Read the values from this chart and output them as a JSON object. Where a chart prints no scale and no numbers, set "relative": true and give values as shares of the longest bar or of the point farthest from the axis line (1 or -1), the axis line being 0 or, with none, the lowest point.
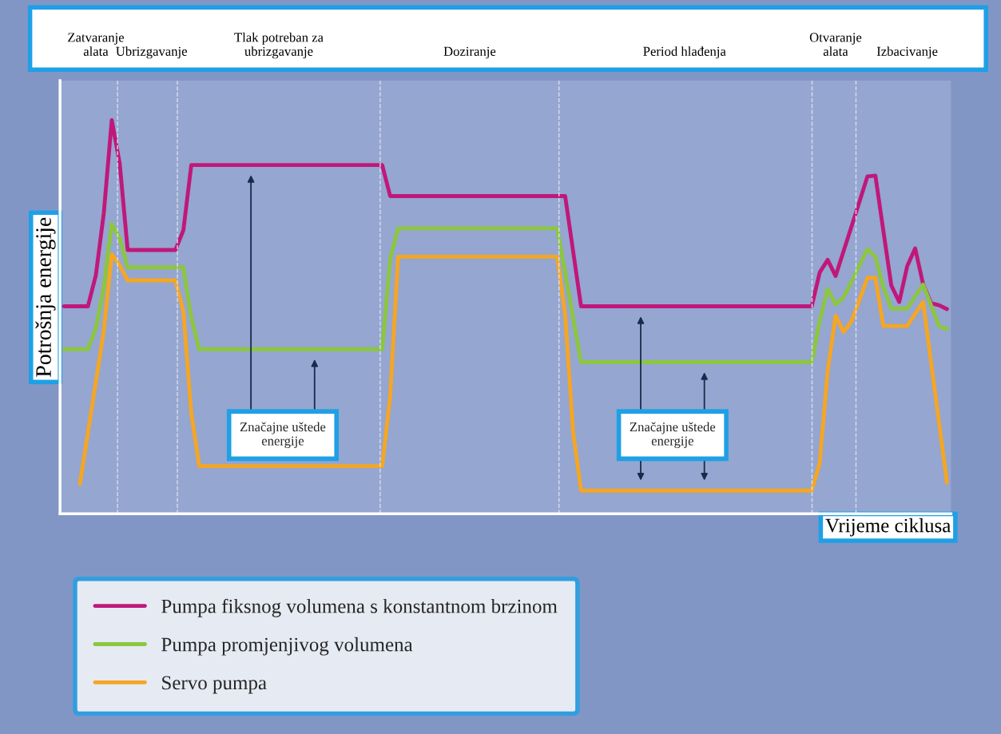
{
  "chart_data": {
    "type": "line",
    "relative": true,
    "ylabel": "Potrošnja energije",
    "xlabel": "Vrijeme ciklusa",
    "legend": "bottom",
    "marker": "none",
    "line_style": "solid",
    "categories": [
      null,
      null,
      null,
      null,
      "Zatvaranje\nalata",
      null,
      null,
      null,
      null,
      null,
      null,
      "Ubrizgavanje",
      null,
      null,
      null,
      null,
      null,
      null,
      null,
      null,
      null,
      null,
      null,
      null,
      null,
      null,
      null,
      "Tlak potreban za\nubrizgavanje",
      null,
      null,
      null,
      null,
      null,
      null,
      null,
      null,
      null,
      null,
      null,
      null,
      null,
      null,
      null,
      null,
      null,
      null,
      null,
      null,
      null,
      null,
      null,
      "Doziranje",
      null,
      null,
      null,
      null,
      null,
      null,
      null,
      null,
      null,
      null,
      null,
      null,
      null,
      null,
      null,
      null,
      null,
      null,
      null,
      null,
      null,
      null,
      null,
      null,
      null,
      null,
      "Period hlađenja",
      null,
      null,
      null,
      null,
      null,
      null,
      null,
      null,
      null,
      null,
      null,
      null,
      null,
      null,
      null,
      null,
      null,
      null,
      "Otvaranje\nalata",
      null,
      null,
      null,
      null,
      null,
      null,
      null,
      null,
      "Izbacivanje",
      null,
      null,
      null,
      null,
      null
    ],
    "series": [
      {
        "name": "Pumpa fiksnog volumena s konstantnom brzinom",
        "color": "#c0187a",
        "values": [
          0.527,
          0.527,
          0.527,
          0.527,
          0.606,
          0.764,
          1.0,
          0.89,
          0.67,
          0.67,
          0.67,
          0.67,
          0.67,
          0.67,
          0.67,
          0.72,
          0.886,
          0.886,
          0.886,
          0.886,
          0.886,
          0.886,
          0.886,
          0.886,
          0.886,
          0.886,
          0.886,
          0.886,
          0.886,
          0.886,
          0.886,
          0.886,
          0.886,
          0.886,
          0.886,
          0.886,
          0.886,
          0.886,
          0.886,
          0.886,
          0.886,
          0.807,
          0.807,
          0.807,
          0.807,
          0.807,
          0.807,
          0.807,
          0.807,
          0.807,
          0.807,
          0.807,
          0.807,
          0.807,
          0.807,
          0.807,
          0.807,
          0.807,
          0.807,
          0.807,
          0.807,
          0.807,
          0.807,
          0.807,
          0.667,
          0.527,
          0.527,
          0.527,
          0.527,
          0.527,
          0.527,
          0.527,
          0.527,
          0.527,
          0.527,
          0.527,
          0.527,
          0.527,
          0.527,
          0.527,
          0.527,
          0.527,
          0.527,
          0.527,
          0.527,
          0.527,
          0.527,
          0.527,
          0.527,
          0.527,
          0.527,
          0.527,
          0.527,
          0.527,
          0.527,
          0.613,
          0.645,
          0.604,
          0.667,
          0.73,
          0.793,
          0.857,
          0.859,
          0.719,
          0.58,
          0.538,
          0.629,
          0.674,
          0.583,
          0.535,
          0.53,
          0.52
        ]
      },
      {
        "name": "Pumpa promjenjivog volumena",
        "color": "#8cc63f",
        "values": [
          0.418,
          0.418,
          0.418,
          0.418,
          0.471,
          0.577,
          0.736,
          0.699,
          0.626,
          0.626,
          0.626,
          0.626,
          0.626,
          0.626,
          0.626,
          0.626,
          0.498,
          0.418,
          0.418,
          0.418,
          0.418,
          0.418,
          0.418,
          0.418,
          0.418,
          0.418,
          0.418,
          0.418,
          0.418,
          0.418,
          0.418,
          0.418,
          0.418,
          0.418,
          0.418,
          0.418,
          0.418,
          0.418,
          0.418,
          0.418,
          0.418,
          0.648,
          0.725,
          0.725,
          0.725,
          0.725,
          0.725,
          0.725,
          0.725,
          0.725,
          0.725,
          0.725,
          0.725,
          0.725,
          0.725,
          0.725,
          0.725,
          0.725,
          0.725,
          0.725,
          0.725,
          0.725,
          0.725,
          0.612,
          0.498,
          0.385,
          0.385,
          0.385,
          0.385,
          0.385,
          0.385,
          0.385,
          0.385,
          0.385,
          0.385,
          0.385,
          0.385,
          0.385,
          0.385,
          0.385,
          0.385,
          0.385,
          0.385,
          0.385,
          0.385,
          0.385,
          0.385,
          0.385,
          0.385,
          0.385,
          0.385,
          0.385,
          0.385,
          0.385,
          0.385,
          0.49,
          0.571,
          0.532,
          0.55,
          0.59,
          0.631,
          0.672,
          0.653,
          0.575,
          0.521,
          0.521,
          0.521,
          0.552,
          0.582,
          0.53,
          0.477,
          0.469
        ]
      },
      {
        "name": "Servo pumpa",
        "color": "#f5a623",
        "values": [
          null,
          null,
          0.076,
          0.206,
          0.335,
          0.465,
          0.659,
          0.631,
          0.593,
          0.593,
          0.593,
          0.593,
          0.593,
          0.593,
          0.593,
          0.514,
          0.256,
          0.121,
          0.121,
          0.121,
          0.121,
          0.121,
          0.121,
          0.121,
          0.121,
          0.121,
          0.121,
          0.121,
          0.121,
          0.121,
          0.121,
          0.121,
          0.121,
          0.121,
          0.121,
          0.121,
          0.121,
          0.121,
          0.121,
          0.121,
          0.121,
          0.298,
          0.653,
          0.653,
          0.653,
          0.653,
          0.653,
          0.653,
          0.653,
          0.653,
          0.653,
          0.653,
          0.653,
          0.653,
          0.653,
          0.653,
          0.653,
          0.653,
          0.653,
          0.653,
          0.653,
          0.653,
          0.653,
          0.505,
          0.208,
          0.059,
          0.059,
          0.059,
          0.059,
          0.059,
          0.059,
          0.059,
          0.059,
          0.059,
          0.059,
          0.059,
          0.059,
          0.059,
          0.059,
          0.059,
          0.059,
          0.059,
          0.059,
          0.059,
          0.059,
          0.059,
          0.059,
          0.059,
          0.059,
          0.059,
          0.059,
          0.059,
          0.059,
          0.059,
          0.059,
          0.129,
          0.363,
          0.503,
          0.462,
          0.489,
          0.544,
          0.599,
          0.6,
          0.477,
          0.477,
          0.477,
          0.477,
          0.508,
          0.538,
          0.385,
          0.232,
          0.079
        ]
      }
    ],
    "annotations": [
      "Značajne uštede\nenergije",
      "Značajne uštede\nenergije"
    ]
  }
}
